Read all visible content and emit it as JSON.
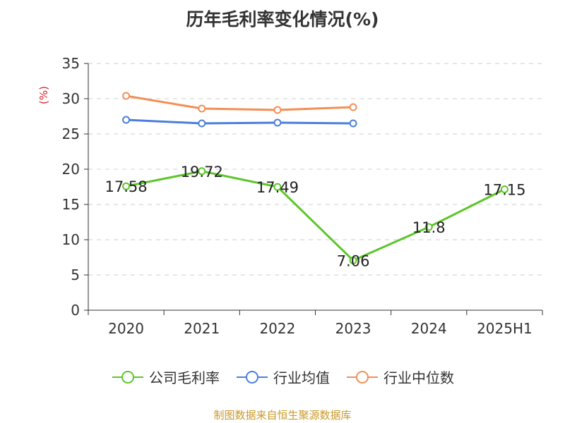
{
  "chart_data": {
    "type": "line",
    "title": "历年毛利率变化情况(%)",
    "ylabel": "(%)",
    "categories": [
      "2020",
      "2021",
      "2022",
      "2023",
      "2024",
      "2025H1"
    ],
    "ylim": [
      0,
      35
    ],
    "yticks": [
      0,
      5,
      10,
      15,
      20,
      25,
      30,
      35
    ],
    "grid": true,
    "legend_position": "bottom",
    "series": [
      {
        "name": "公司毛利率",
        "color": "#5cc629",
        "values": [
          17.58,
          19.72,
          17.49,
          7.06,
          11.8,
          17.15
        ],
        "show_labels": true
      },
      {
        "name": "行业均值",
        "color": "#4a7fdb",
        "values": [
          27.0,
          26.5,
          26.6,
          26.5,
          null,
          null
        ],
        "show_labels": false
      },
      {
        "name": "行业中位数",
        "color": "#f28f56",
        "values": [
          30.4,
          28.6,
          28.4,
          28.8,
          null,
          null
        ],
        "show_labels": false
      }
    ]
  },
  "footer": {
    "source": "制图数据来自恒生聚源数据库"
  }
}
